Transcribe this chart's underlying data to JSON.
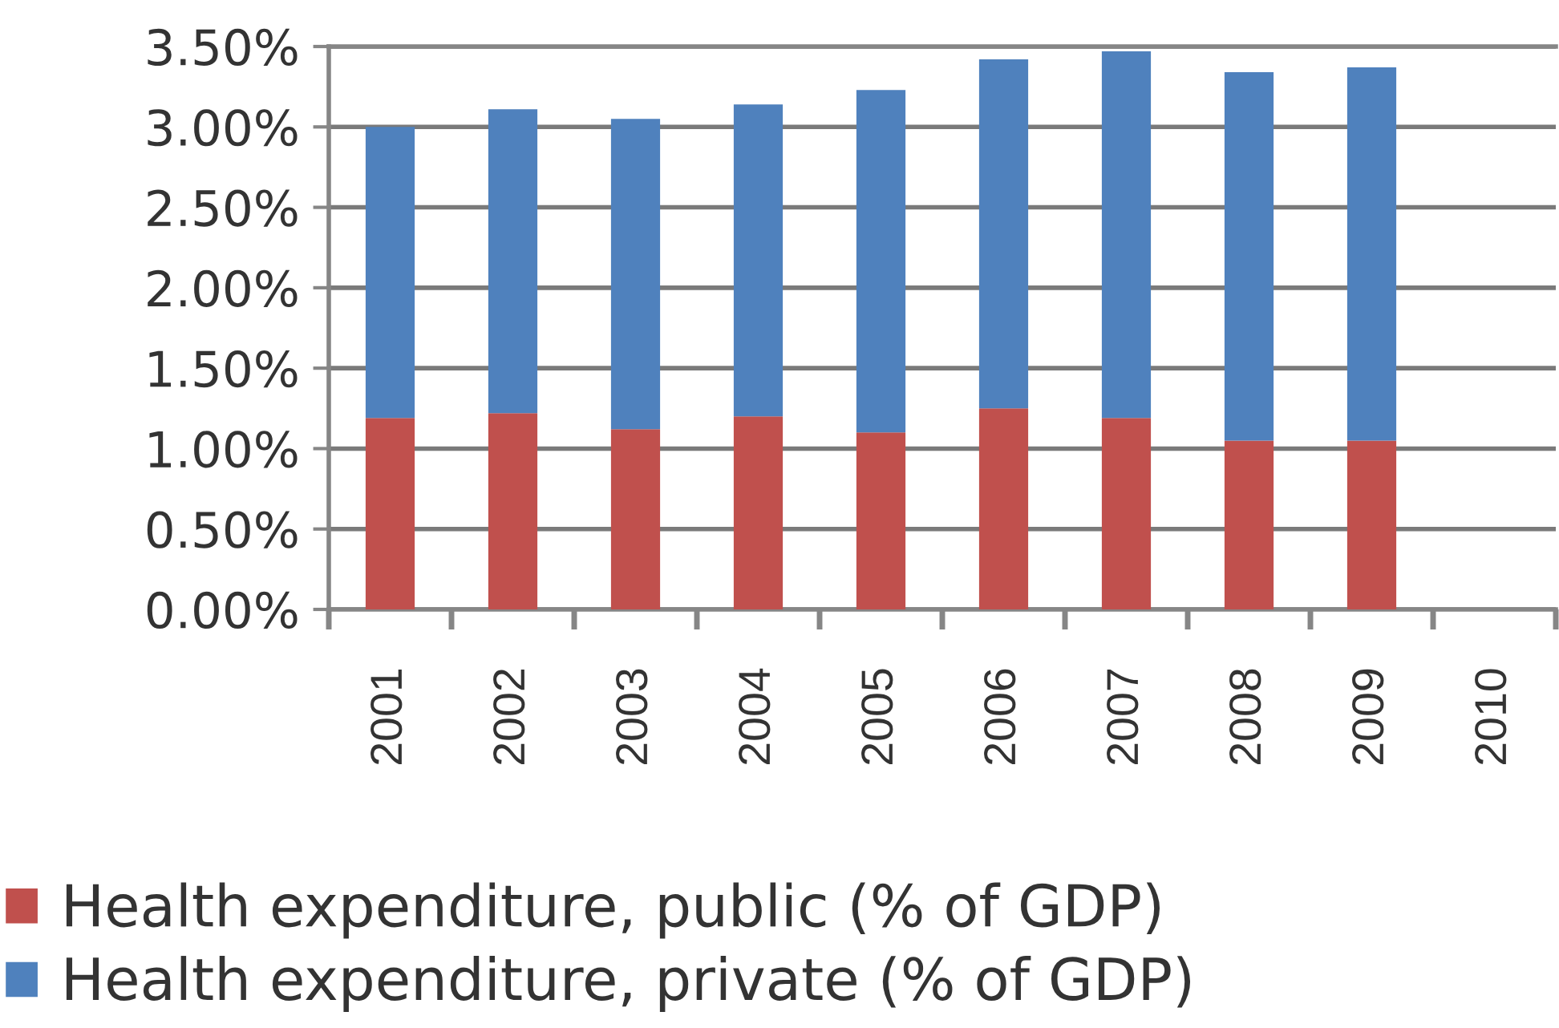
{
  "chart_data": {
    "type": "bar",
    "stacked": true,
    "categories": [
      "2001",
      "2002",
      "2003",
      "2004",
      "2005",
      "2006",
      "2007",
      "2008",
      "2009",
      "2010"
    ],
    "series": [
      {
        "name": "Health expenditure, public (% of GDP)",
        "color": "#c0504d",
        "values": [
          1.19,
          1.22,
          1.12,
          1.2,
          1.1,
          1.25,
          1.19,
          1.05,
          1.05,
          null
        ]
      },
      {
        "name": "Health expenditure, private (% of GDP)",
        "color": "#4f81bd",
        "values": [
          1.81,
          1.89,
          1.93,
          1.94,
          2.13,
          2.17,
          2.28,
          2.29,
          2.32,
          null
        ]
      }
    ],
    "ylim": [
      0,
      3.5
    ],
    "yticks": [
      {
        "value": 0,
        "label": "0.00%"
      },
      {
        "value": 0.5,
        "label": "0.50%"
      },
      {
        "value": 1,
        "label": "1.00%"
      },
      {
        "value": 1.5,
        "label": "1.50%"
      },
      {
        "value": 2,
        "label": "2.00%"
      },
      {
        "value": 2.5,
        "label": "2.50%"
      },
      {
        "value": 3,
        "label": "3.00%"
      },
      {
        "value": 3.5,
        "label": "3.50%"
      }
    ],
    "grid": "y",
    "legend": "bottom"
  }
}
